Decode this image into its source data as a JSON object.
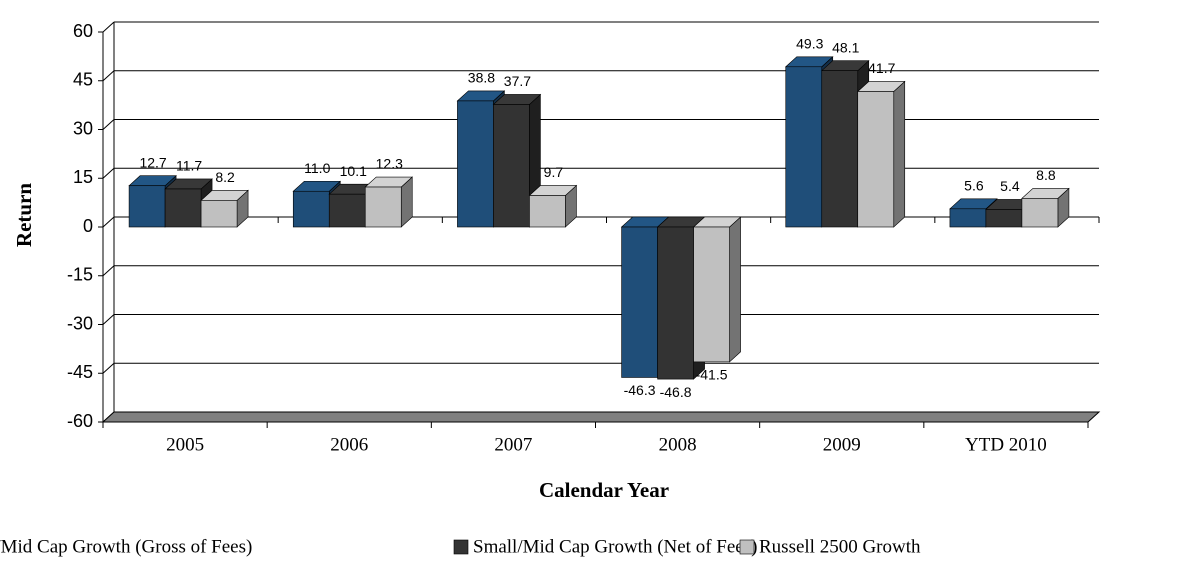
{
  "chart_data": {
    "type": "bar3d",
    "x_label": "Calendar Year",
    "y_label": "Return",
    "categories": [
      "2005",
      "2006",
      "2007",
      "2008",
      "2009",
      "YTD 2010"
    ],
    "series": [
      {
        "name": "Small/Mid Cap Growth (Gross of Fees)",
        "color": "#1f4e79",
        "values": [
          12.7,
          11.0,
          38.8,
          -46.3,
          49.3,
          5.6
        ],
        "value_labels": [
          "12.7",
          "11.0",
          "38.8",
          "-46.3",
          "49.3",
          "5.6"
        ]
      },
      {
        "name": "Small/Mid Cap Growth (Net of Fees)",
        "color": "#333333",
        "values": [
          11.7,
          10.1,
          37.7,
          -46.8,
          48.1,
          5.4
        ],
        "value_labels": [
          "11.7",
          "10.1",
          "37.7",
          "-46.8",
          "48.1",
          "5.4"
        ]
      },
      {
        "name": "Russell 2500 Growth",
        "color": "#c0c0c0",
        "values": [
          8.2,
          12.3,
          9.7,
          -41.5,
          41.7,
          8.8
        ],
        "value_labels": [
          "8.2",
          "12.3",
          "9.7",
          "-41.5",
          "41.7",
          "8.8"
        ]
      }
    ],
    "ylim": [
      -60,
      60
    ],
    "yticks": [
      -60,
      -45,
      -30,
      -15,
      0,
      15,
      30,
      45,
      60
    ],
    "grid": true,
    "legend": "bottom"
  }
}
